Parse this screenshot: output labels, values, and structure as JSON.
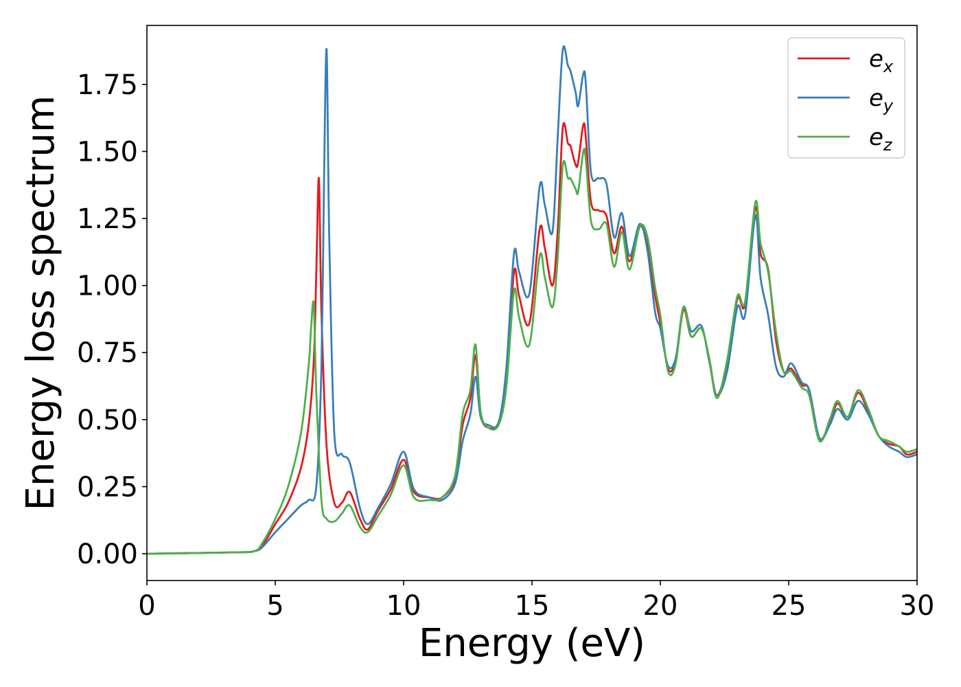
{
  "chart_data": {
    "type": "line",
    "title": "",
    "xlabel": "Energy (eV)",
    "ylabel": "Energy loss spectrum",
    "xlim": [
      0,
      30
    ],
    "ylim": [
      -0.1,
      1.97
    ],
    "xticks": [
      0,
      5,
      10,
      15,
      20,
      25,
      30
    ],
    "xtick_labels": [
      "0",
      "5",
      "10",
      "15",
      "20",
      "25",
      "30"
    ],
    "yticks": [
      0,
      0.25,
      0.5,
      0.75,
      1.0,
      1.25,
      1.5,
      1.75
    ],
    "ytick_labels": [
      "0.00",
      "0.25",
      "0.50",
      "0.75",
      "1.00",
      "1.25",
      "1.50",
      "1.75"
    ],
    "grid": false,
    "legend_position": "top-right",
    "series": [
      {
        "name": "e_x",
        "legend_base": "e",
        "legend_sub": "x",
        "color": "#e41a1c",
        "x": [
          0,
          3.5,
          4.2,
          4.5,
          5.0,
          5.5,
          6.0,
          6.3,
          6.5,
          6.6,
          6.7,
          6.8,
          7.0,
          7.3,
          7.6,
          7.9,
          8.3,
          8.6,
          9.0,
          9.5,
          10.0,
          10.4,
          11.0,
          11.5,
          12.0,
          12.3,
          12.6,
          12.8,
          13.0,
          13.3,
          13.7,
          14.0,
          14.3,
          14.5,
          14.9,
          15.3,
          15.5,
          15.8,
          16.0,
          16.2,
          16.4,
          16.5,
          16.7,
          16.8,
          17.0,
          17.1,
          17.3,
          17.6,
          17.9,
          18.2,
          18.5,
          18.8,
          19.2,
          19.5,
          19.8,
          20.0,
          20.3,
          20.6,
          20.9,
          21.2,
          21.6,
          21.9,
          22.2,
          22.6,
          23.0,
          23.3,
          23.7,
          23.9,
          24.2,
          24.5,
          24.8,
          25.1,
          25.5,
          25.8,
          26.2,
          26.6,
          26.9,
          27.3,
          27.7,
          28.1,
          28.5,
          28.9,
          29.3,
          29.6,
          30
        ],
        "y": [
          0.0,
          0.005,
          0.01,
          0.03,
          0.11,
          0.19,
          0.32,
          0.48,
          0.72,
          1.05,
          1.4,
          0.9,
          0.4,
          0.19,
          0.19,
          0.23,
          0.13,
          0.09,
          0.16,
          0.24,
          0.35,
          0.23,
          0.21,
          0.21,
          0.28,
          0.48,
          0.58,
          0.74,
          0.52,
          0.47,
          0.49,
          0.65,
          1.05,
          0.96,
          0.86,
          1.21,
          1.14,
          1.0,
          1.2,
          1.59,
          1.53,
          1.52,
          1.45,
          1.46,
          1.6,
          1.55,
          1.31,
          1.28,
          1.26,
          1.12,
          1.22,
          1.09,
          1.22,
          1.15,
          0.96,
          0.86,
          0.69,
          0.72,
          0.91,
          0.81,
          0.84,
          0.73,
          0.59,
          0.71,
          0.95,
          0.93,
          1.29,
          1.12,
          1.06,
          0.8,
          0.68,
          0.69,
          0.63,
          0.61,
          0.43,
          0.49,
          0.56,
          0.51,
          0.6,
          0.53,
          0.44,
          0.41,
          0.4,
          0.37,
          0.38
        ]
      },
      {
        "name": "e_y",
        "legend_base": "e",
        "legend_sub": "y",
        "color": "#377eb8",
        "x": [
          0,
          3.5,
          4.2,
          4.5,
          5.0,
          5.5,
          6.0,
          6.3,
          6.6,
          6.8,
          6.9,
          7.0,
          7.1,
          7.3,
          7.6,
          7.9,
          8.3,
          8.6,
          9.0,
          9.5,
          10.0,
          10.4,
          11.0,
          11.5,
          12.0,
          12.3,
          12.6,
          12.8,
          13.0,
          13.3,
          13.7,
          14.0,
          14.3,
          14.5,
          14.9,
          15.3,
          15.5,
          15.8,
          16.0,
          16.2,
          16.4,
          16.5,
          16.7,
          16.8,
          17.0,
          17.1,
          17.3,
          17.6,
          17.9,
          18.2,
          18.5,
          18.8,
          19.2,
          19.5,
          19.8,
          20.0,
          20.3,
          20.6,
          20.9,
          21.2,
          21.6,
          21.9,
          22.2,
          22.6,
          23.0,
          23.3,
          23.7,
          23.9,
          24.2,
          24.5,
          24.8,
          25.1,
          25.5,
          25.8,
          26.2,
          26.6,
          26.9,
          27.3,
          27.7,
          28.1,
          28.5,
          28.9,
          29.3,
          29.6,
          30
        ],
        "y": [
          0.0,
          0.005,
          0.01,
          0.025,
          0.08,
          0.13,
          0.18,
          0.2,
          0.25,
          0.7,
          1.4,
          1.88,
          1.2,
          0.45,
          0.37,
          0.34,
          0.17,
          0.11,
          0.17,
          0.26,
          0.38,
          0.24,
          0.21,
          0.2,
          0.26,
          0.42,
          0.52,
          0.66,
          0.51,
          0.48,
          0.49,
          0.69,
          1.12,
          1.05,
          0.97,
          1.37,
          1.3,
          1.2,
          1.55,
          1.88,
          1.82,
          1.8,
          1.72,
          1.67,
          1.79,
          1.75,
          1.42,
          1.4,
          1.38,
          1.18,
          1.27,
          1.11,
          1.23,
          1.13,
          0.9,
          0.84,
          0.7,
          0.73,
          0.92,
          0.83,
          0.85,
          0.72,
          0.59,
          0.68,
          0.92,
          0.89,
          1.26,
          1.03,
          0.89,
          0.7,
          0.66,
          0.71,
          0.64,
          0.61,
          0.43,
          0.48,
          0.54,
          0.5,
          0.57,
          0.52,
          0.44,
          0.4,
          0.38,
          0.36,
          0.37
        ]
      },
      {
        "name": "e_z",
        "legend_base": "e",
        "legend_sub": "z",
        "color": "#4daf4a",
        "x": [
          0,
          3.5,
          4.2,
          4.5,
          5.0,
          5.5,
          6.0,
          6.3,
          6.4,
          6.5,
          6.6,
          6.8,
          7.0,
          7.3,
          7.6,
          7.9,
          8.3,
          8.6,
          9.0,
          9.5,
          10.0,
          10.4,
          11.0,
          11.5,
          12.0,
          12.3,
          12.6,
          12.8,
          13.0,
          13.3,
          13.7,
          14.0,
          14.3,
          14.5,
          14.9,
          15.3,
          15.5,
          15.8,
          16.0,
          16.2,
          16.4,
          16.5,
          16.7,
          16.8,
          17.0,
          17.1,
          17.3,
          17.6,
          17.9,
          18.2,
          18.5,
          18.8,
          19.2,
          19.5,
          19.8,
          20.0,
          20.3,
          20.6,
          20.9,
          21.2,
          21.6,
          21.9,
          22.2,
          22.6,
          23.0,
          23.3,
          23.7,
          23.9,
          24.2,
          24.5,
          24.8,
          25.1,
          25.5,
          25.8,
          26.2,
          26.6,
          26.9,
          27.3,
          27.7,
          28.1,
          28.5,
          28.9,
          29.3,
          29.6,
          30
        ],
        "y": [
          0.0,
          0.005,
          0.01,
          0.04,
          0.13,
          0.25,
          0.45,
          0.7,
          0.85,
          0.93,
          0.6,
          0.2,
          0.13,
          0.12,
          0.15,
          0.18,
          0.1,
          0.08,
          0.14,
          0.22,
          0.33,
          0.21,
          0.2,
          0.21,
          0.29,
          0.52,
          0.61,
          0.78,
          0.53,
          0.47,
          0.48,
          0.62,
          0.98,
          0.88,
          0.78,
          1.11,
          1.03,
          0.92,
          1.1,
          1.45,
          1.4,
          1.4,
          1.36,
          1.35,
          1.5,
          1.47,
          1.24,
          1.21,
          1.23,
          1.07,
          1.2,
          1.06,
          1.22,
          1.18,
          0.99,
          0.89,
          0.68,
          0.71,
          0.92,
          0.81,
          0.84,
          0.73,
          0.58,
          0.72,
          0.96,
          0.94,
          1.31,
          1.16,
          1.05,
          0.83,
          0.68,
          0.68,
          0.62,
          0.59,
          0.42,
          0.5,
          0.57,
          0.51,
          0.61,
          0.54,
          0.44,
          0.42,
          0.4,
          0.38,
          0.39
        ]
      }
    ]
  }
}
